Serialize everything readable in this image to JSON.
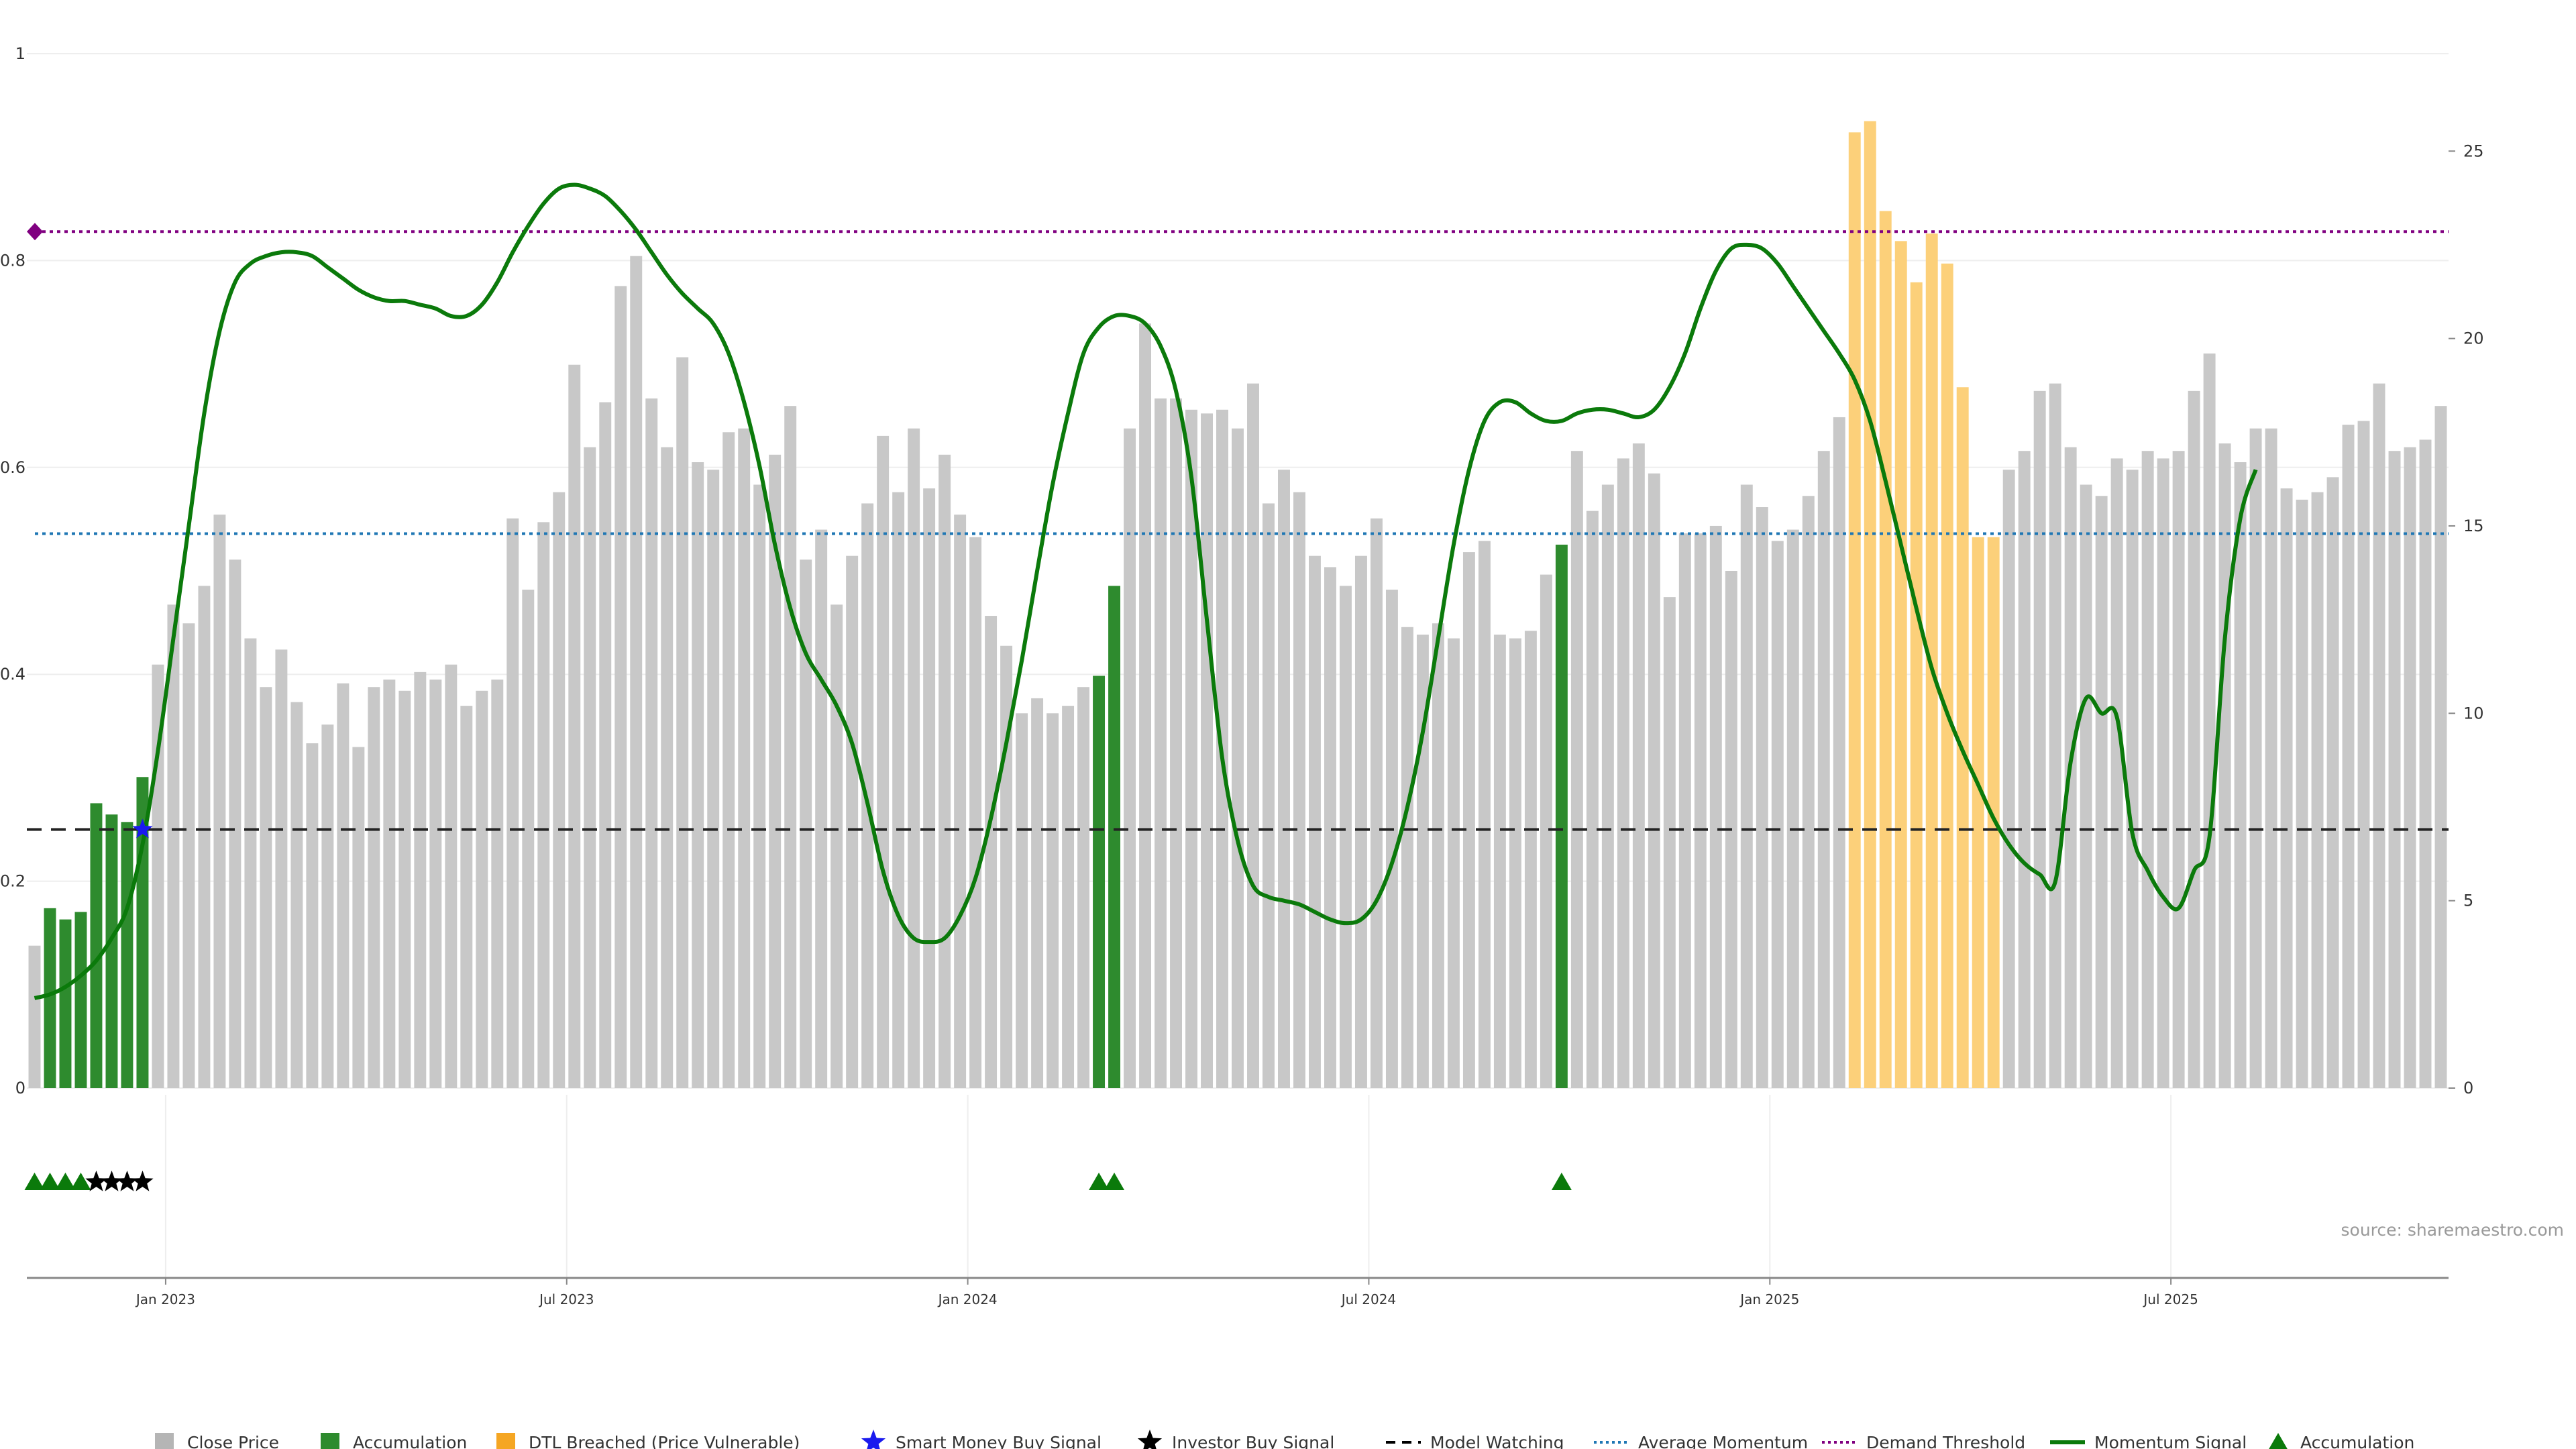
{
  "chart_data": {
    "type": "bar",
    "source": "source: sharemaestro.com",
    "left_axis": {
      "ylim": [
        0,
        1
      ],
      "ticks": [
        "0",
        "0.2",
        "0.4",
        "0.6",
        "0.8",
        "1"
      ]
    },
    "right_axis": {
      "ylim": [
        0,
        27.6
      ],
      "ticks": [
        "0",
        "5",
        "10",
        "15",
        "20",
        "25"
      ]
    },
    "x_ticks": [
      "Jan 2023",
      "Jul 2023",
      "Jan 2024",
      "Jul 2024",
      "Jan 2025",
      "Jul 2025"
    ],
    "x_tick_indices": [
      8.5,
      34.5,
      60.5,
      86.5,
      112.5,
      138.5
    ],
    "bar_count": 157,
    "close_price": [
      3.8,
      4.8,
      4.5,
      4.7,
      7.6,
      7.3,
      7.1,
      8.3,
      11.3,
      12.9,
      12.4,
      13.4,
      15.3,
      14.1,
      12.0,
      10.7,
      11.7,
      10.3,
      9.2,
      9.7,
      10.8,
      9.1,
      10.7,
      10.9,
      10.6,
      11.1,
      10.9,
      11.3,
      10.2,
      10.6,
      10.9,
      15.2,
      13.3,
      15.1,
      15.9,
      19.3,
      17.1,
      18.3,
      21.4,
      22.2,
      18.4,
      17.1,
      19.5,
      16.7,
      16.5,
      17.5,
      17.6,
      16.1,
      16.9,
      18.2,
      14.1,
      14.9,
      12.9,
      14.2,
      15.6,
      17.4,
      15.9,
      17.6,
      16.0,
      16.9,
      15.3,
      14.7,
      12.6,
      11.8,
      10.0,
      10.4,
      10.0,
      10.2,
      10.7,
      11.0,
      13.4,
      17.6,
      20.4,
      18.4,
      18.4,
      18.1,
      18.0,
      18.1,
      17.6,
      18.8,
      15.6,
      16.5,
      15.9,
      14.2,
      13.9,
      13.4,
      14.2,
      15.2,
      13.3,
      12.3,
      12.1,
      12.4,
      12.0,
      14.3,
      14.6,
      12.1,
      12.0,
      12.2,
      13.7,
      14.5,
      17.0,
      15.4,
      16.1,
      16.8,
      17.2,
      16.4,
      13.1,
      14.8,
      14.8,
      15.0,
      13.8,
      16.1,
      15.5,
      14.6,
      14.9,
      15.8,
      17.0,
      17.9,
      25.5,
      25.8,
      23.4,
      22.6,
      21.5,
      22.8,
      22.0,
      18.7,
      14.7,
      14.7,
      16.5,
      17.0,
      18.6,
      18.8,
      17.1,
      16.1,
      15.8,
      16.8,
      16.5,
      17.0,
      16.8,
      17.0,
      18.6,
      19.6,
      17.2,
      16.7,
      17.6,
      17.6,
      16.0,
      15.7,
      15.9,
      16.3,
      17.7,
      17.8,
      18.8,
      17.0,
      17.1,
      17.3,
      18.2
    ],
    "series": [
      {
        "name": "Close Price",
        "color": "#c8c8c8"
      },
      {
        "name": "Accumulation",
        "color": "#2e8b2e"
      },
      {
        "name": "DTL Breached (Price Vulnerable)",
        "color": "#fcd07a"
      }
    ],
    "accumulation_indices": [
      1,
      2,
      3,
      4,
      5,
      6,
      7,
      69,
      70,
      99
    ],
    "dtl_breached_indices": [
      118,
      119,
      120,
      121,
      122,
      123,
      124,
      125,
      126,
      127
    ],
    "momentum_signal": [
      2.4,
      2.5,
      2.7,
      3.0,
      3.4,
      4.0,
      4.8,
      6.5,
      9.0,
      12.0,
      15.0,
      18.0,
      20.2,
      21.5,
      22.0,
      22.2,
      22.3,
      22.3,
      22.2,
      21.9,
      21.6,
      21.3,
      21.1,
      21.0,
      21.0,
      20.9,
      20.8,
      20.6,
      20.6,
      20.9,
      21.5,
      22.3,
      23.0,
      23.6,
      24.0,
      24.1,
      24.0,
      23.8,
      23.4,
      22.9,
      22.3,
      21.7,
      21.2,
      20.8,
      20.4,
      19.6,
      18.3,
      16.6,
      14.5,
      12.8,
      11.6,
      10.9,
      10.2,
      9.2,
      7.6,
      5.8,
      4.6,
      4.0,
      3.9,
      4.0,
      4.6,
      5.6,
      7.2,
      9.2,
      11.4,
      13.8,
      16.1,
      18.0,
      19.6,
      20.3,
      20.6,
      20.6,
      20.4,
      19.8,
      18.6,
      16.3,
      12.5,
      8.8,
      6.6,
      5.4,
      5.1,
      5.0,
      4.9,
      4.7,
      4.5,
      4.4,
      4.5,
      5.0,
      6.0,
      7.5,
      9.5,
      12.0,
      14.5,
      16.5,
      17.8,
      18.3,
      18.3,
      18.0,
      17.8,
      17.8,
      18.0,
      18.1,
      18.1,
      18.0,
      17.9,
      18.1,
      18.7,
      19.6,
      20.8,
      21.8,
      22.4,
      22.5,
      22.4,
      22.0,
      21.4,
      20.8,
      20.2,
      19.6,
      18.9,
      17.8,
      16.2,
      14.5,
      12.8,
      11.2,
      10.0,
      9.0,
      8.1,
      7.2,
      6.5,
      6.0,
      5.7,
      5.5,
      8.7,
      10.4,
      10.0,
      9.9,
      6.8,
      5.8,
      5.1,
      4.8,
      5.8,
      6.7,
      12.0,
      15.2,
      16.5
    ],
    "model_watching_level": 0.25,
    "average_momentum_level": 0.536,
    "demand_threshold_level": 0.828,
    "smart_money_signal": {
      "index": 7,
      "level": 0.25
    },
    "signals_panel": {
      "accumulation_triangles": [
        0,
        1,
        2,
        3,
        69,
        70,
        99
      ],
      "investor_buy_stars": [
        4,
        5,
        6,
        7
      ]
    },
    "legend": [
      {
        "label": "Close Price",
        "symbol": "square",
        "color": "#b5b5b5"
      },
      {
        "label": "Accumulation",
        "symbol": "square",
        "color": "#2e8b2e"
      },
      {
        "label": "DTL Breached (Price Vulnerable)",
        "symbol": "square",
        "color": "#f5a623"
      },
      {
        "label": "Smart Money Buy Signal",
        "symbol": "star",
        "color": "#1a1aee"
      },
      {
        "label": "Investor Buy Signal",
        "symbol": "star",
        "color": "#000000"
      },
      {
        "label": "Model Watching",
        "symbol": "dash",
        "color": "#000000"
      },
      {
        "label": "Average Momentum",
        "symbol": "dot",
        "color": "#1f77b4"
      },
      {
        "label": "Demand Threshold",
        "symbol": "dot",
        "color": "#800080"
      },
      {
        "label": "Momentum Signal",
        "symbol": "line",
        "color": "#0b7a0b"
      },
      {
        "label": "Accumulation",
        "symbol": "triangle",
        "color": "#0b7a0b"
      }
    ]
  }
}
